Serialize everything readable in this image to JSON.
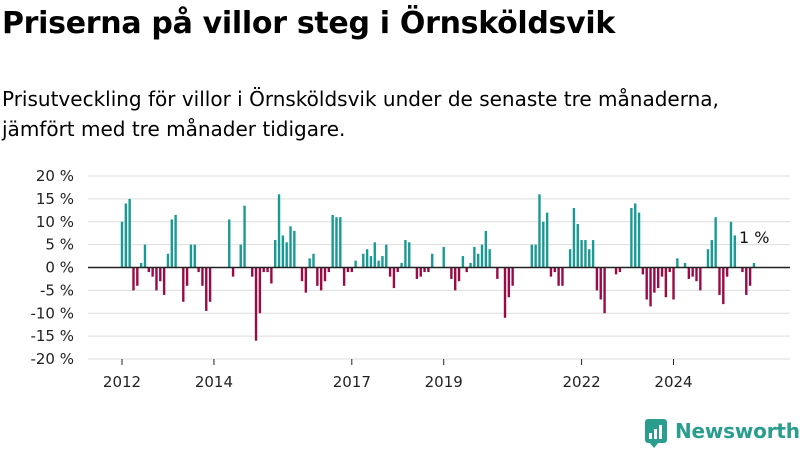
{
  "header": {
    "title": "Priserna på villor steg i Örnsköldsvik",
    "subtitle": "Prisutveckling för villor i Örnsköldsvik under de senaste tre månaderna, jämfört med tre månader tidigare."
  },
  "brand": {
    "name": "Newsworthy",
    "icon": "newsworthy-logo-icon"
  },
  "colors": {
    "positive": "#1a9a94",
    "negative": "#9c0a46",
    "axis": "#222222",
    "grid": "#dddddd",
    "brand": "#2a9d8f"
  },
  "chart_data": {
    "type": "bar",
    "title": "",
    "xlabel": "",
    "ylabel": "",
    "ylim": [
      -20,
      20
    ],
    "yticks": [
      20,
      15,
      10,
      5,
      0,
      -5,
      -10,
      -15,
      -20
    ],
    "ytick_labels": [
      "20 %",
      "15 %",
      "10 %",
      "5 %",
      "0 %",
      "-5 %",
      "-10 %",
      "-15 %",
      "-20 %"
    ],
    "xticks": [
      "2012",
      "2014",
      "2017",
      "2019",
      "2022",
      "2024"
    ],
    "start_month": "2012-01",
    "grid": true,
    "annotation": {
      "text": "1 %"
    },
    "values": [
      10,
      14,
      15,
      -5,
      -4,
      1,
      5,
      -1,
      -2,
      -5,
      -3,
      -6,
      3,
      10.5,
      11.5,
      0,
      -7.5,
      -4,
      5,
      5,
      -1,
      -4,
      -9.5,
      -7.5,
      0,
      0,
      0,
      0,
      10.5,
      -2,
      0,
      5,
      13.5,
      0,
      -2,
      -16,
      -10,
      -1,
      -1,
      -3.5,
      6,
      16,
      7,
      5.5,
      9,
      8,
      0,
      -3,
      -5.5,
      2,
      3,
      -4,
      -5,
      -3,
      -1,
      11.5,
      11,
      11,
      -4,
      -1,
      -1,
      1.5,
      0,
      3,
      4,
      2.5,
      5.5,
      1.5,
      2.5,
      5,
      -2,
      -4.5,
      -1,
      1,
      6,
      5.5,
      0,
      -2.5,
      -2,
      -1,
      -1,
      3,
      0,
      0,
      4.5,
      0,
      -2.5,
      -5,
      -3,
      2.5,
      -1,
      1,
      4.5,
      3,
      5,
      8,
      4,
      0,
      -2.5,
      0,
      -11,
      -6.5,
      -4,
      0,
      0,
      0,
      0,
      5,
      5,
      16,
      10,
      12,
      -2,
      -1,
      -4,
      -4,
      0,
      4,
      13,
      9.5,
      6,
      6,
      4,
      6,
      -5,
      -7,
      -10,
      0,
      0,
      -1.5,
      -1,
      0,
      0,
      13,
      14,
      12,
      -1.5,
      -7,
      -8.5,
      -5.5,
      -4.5,
      -2,
      -6.5,
      -1,
      -7,
      2,
      0,
      1,
      -2.5,
      -2,
      -3,
      -5,
      0,
      4,
      6,
      11,
      -6,
      -8,
      -2,
      10,
      7,
      0,
      -1,
      -6,
      -4,
      1
    ]
  }
}
